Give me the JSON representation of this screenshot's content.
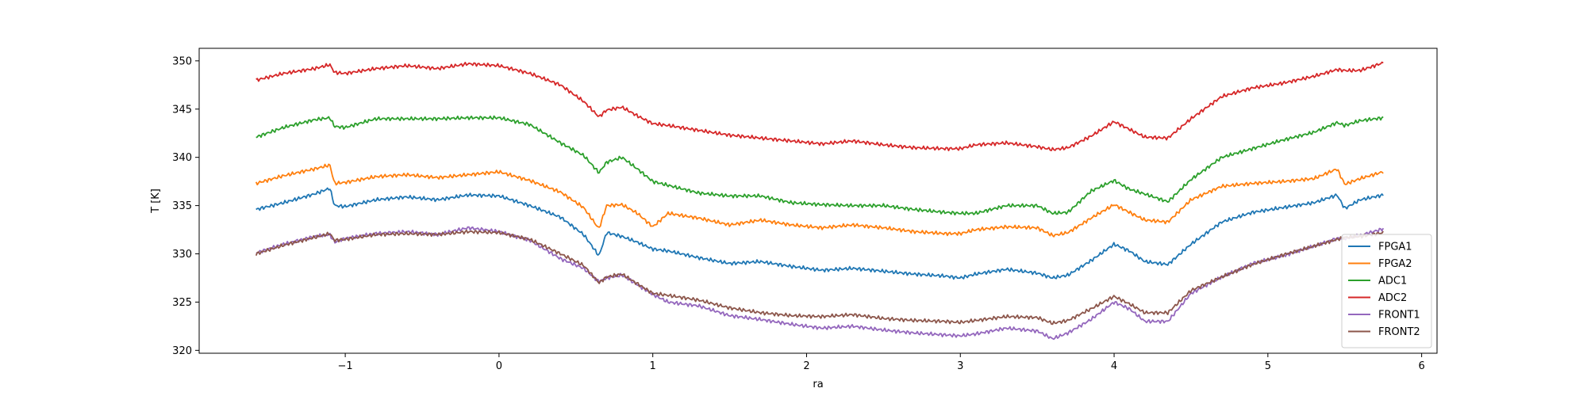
{
  "chart_data": {
    "type": "line",
    "title": "",
    "xlabel": "ra",
    "ylabel": "T [K]",
    "xlim": [
      -1.95,
      6.1
    ],
    "ylim": [
      319.7,
      351.3
    ],
    "xticks": [
      -1,
      0,
      1,
      2,
      3,
      4,
      5,
      6
    ],
    "xtick_labels": [
      "−1",
      "0",
      "1",
      "2",
      "3",
      "4",
      "5",
      "6"
    ],
    "yticks": [
      320,
      325,
      330,
      335,
      340,
      345,
      350
    ],
    "ytick_labels": [
      "320",
      "325",
      "330",
      "335",
      "340",
      "345",
      "350"
    ],
    "grid": false,
    "legend_position": "lower-right",
    "x": [
      -1.58,
      -1.4,
      -1.2,
      -1.1,
      -1.07,
      -1.0,
      -0.8,
      -0.6,
      -0.4,
      -0.2,
      0.0,
      0.2,
      0.4,
      0.55,
      0.65,
      0.7,
      0.8,
      0.9,
      1.0,
      1.1,
      1.3,
      1.5,
      1.7,
      1.9,
      2.1,
      2.3,
      2.5,
      2.7,
      2.9,
      3.0,
      3.1,
      3.3,
      3.5,
      3.6,
      3.7,
      3.85,
      4.0,
      4.1,
      4.2,
      4.35,
      4.5,
      4.7,
      4.9,
      5.1,
      5.3,
      5.45,
      5.5,
      5.6,
      5.75
    ],
    "series": [
      {
        "name": "FPGA1",
        "color": "#1f77b4",
        "values": [
          334.6,
          335.3,
          336.2,
          336.8,
          335.0,
          334.9,
          335.6,
          335.9,
          335.6,
          336.1,
          336.0,
          335.0,
          333.8,
          332.0,
          329.8,
          332.2,
          331.8,
          331.2,
          330.5,
          330.3,
          329.6,
          329.0,
          329.2,
          328.7,
          328.3,
          328.5,
          328.2,
          327.9,
          327.7,
          327.5,
          327.9,
          328.4,
          328.0,
          327.5,
          327.8,
          329.3,
          331.0,
          330.3,
          329.2,
          328.9,
          331.0,
          333.3,
          334.3,
          334.8,
          335.3,
          336.1,
          334.7,
          335.6,
          336.1
        ]
      },
      {
        "name": "FPGA2",
        "color": "#ff7f0e",
        "values": [
          337.3,
          338.1,
          338.8,
          339.2,
          337.3,
          337.4,
          338.0,
          338.2,
          337.9,
          338.2,
          338.5,
          337.6,
          336.4,
          334.8,
          332.6,
          335.0,
          335.1,
          334.2,
          332.8,
          334.2,
          333.7,
          333.0,
          333.5,
          333.0,
          332.7,
          333.0,
          332.7,
          332.3,
          332.1,
          332.1,
          332.5,
          332.8,
          332.7,
          331.9,
          332.2,
          333.7,
          335.1,
          334.3,
          333.5,
          333.3,
          335.6,
          337.0,
          337.3,
          337.5,
          337.8,
          338.8,
          337.2,
          337.8,
          338.5
        ]
      },
      {
        "name": "ADC1",
        "color": "#2ca02c",
        "values": [
          342.1,
          343.1,
          343.9,
          344.1,
          343.2,
          343.1,
          344.0,
          344.0,
          344.0,
          344.1,
          344.1,
          343.4,
          341.5,
          340.2,
          338.4,
          339.5,
          340.0,
          338.8,
          337.5,
          337.1,
          336.3,
          336.0,
          336.0,
          335.3,
          335.1,
          335.0,
          335.0,
          334.6,
          334.3,
          334.2,
          334.2,
          335.0,
          335.0,
          334.2,
          334.3,
          336.5,
          337.6,
          336.7,
          336.2,
          335.4,
          337.7,
          340.0,
          340.9,
          341.8,
          342.6,
          343.6,
          343.3,
          343.8,
          344.1
        ]
      },
      {
        "name": "ADC2",
        "color": "#d62728",
        "values": [
          348.0,
          348.7,
          349.2,
          349.6,
          348.8,
          348.7,
          349.2,
          349.5,
          349.2,
          349.7,
          349.5,
          348.7,
          347.5,
          345.8,
          344.2,
          344.9,
          345.2,
          344.3,
          343.5,
          343.3,
          342.8,
          342.3,
          342.0,
          341.7,
          341.4,
          341.7,
          341.3,
          341.0,
          340.9,
          340.9,
          341.3,
          341.5,
          341.1,
          340.8,
          341.0,
          342.2,
          343.7,
          342.9,
          342.1,
          342.0,
          344.0,
          346.3,
          347.2,
          347.7,
          348.4,
          349.1,
          349.0,
          349.0,
          349.8
        ]
      },
      {
        "name": "FRONT1",
        "color": "#9467bd",
        "values": [
          330.1,
          331.0,
          331.8,
          332.0,
          331.2,
          331.6,
          332.1,
          332.3,
          332.0,
          332.7,
          332.3,
          331.4,
          329.5,
          328.5,
          327.1,
          327.5,
          327.8,
          326.8,
          325.8,
          325.0,
          324.6,
          323.6,
          323.2,
          322.7,
          322.3,
          322.5,
          322.1,
          321.8,
          321.6,
          321.5,
          321.7,
          322.3,
          322.0,
          321.2,
          321.8,
          323.2,
          325.0,
          324.3,
          323.0,
          323.0,
          325.9,
          327.6,
          329.0,
          329.8,
          330.8,
          331.6,
          331.6,
          331.9,
          332.6
        ]
      },
      {
        "name": "FRONT2",
        "color": "#8c564b",
        "values": [
          330.0,
          330.9,
          331.7,
          332.1,
          331.4,
          331.5,
          332.0,
          332.1,
          332.0,
          332.3,
          332.2,
          331.5,
          330.0,
          328.8,
          327.0,
          327.6,
          327.9,
          326.9,
          325.9,
          325.7,
          325.2,
          324.4,
          323.9,
          323.6,
          323.5,
          323.7,
          323.3,
          323.1,
          323.0,
          322.9,
          323.1,
          323.5,
          323.4,
          322.8,
          323.1,
          324.3,
          325.6,
          324.8,
          323.9,
          323.9,
          326.2,
          327.6,
          328.9,
          329.9,
          330.8,
          331.5,
          331.7,
          331.8,
          332.2
        ]
      }
    ]
  }
}
